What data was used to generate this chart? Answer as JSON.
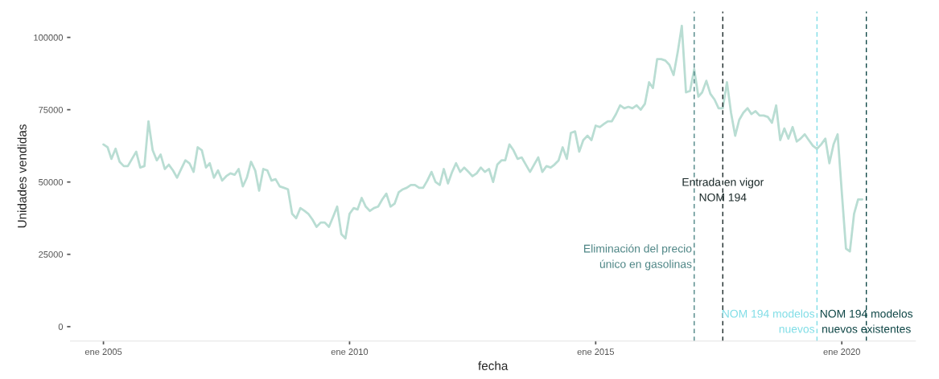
{
  "chart_data": {
    "type": "line",
    "xlabel": "fecha",
    "ylabel": "Unidades vendidas",
    "x": [
      "2005-01",
      "2005-02",
      "2005-03",
      "2005-04",
      "2005-05",
      "2005-06",
      "2005-07",
      "2005-08",
      "2005-09",
      "2005-10",
      "2005-11",
      "2005-12",
      "2006-01",
      "2006-02",
      "2006-03",
      "2006-04",
      "2006-05",
      "2006-06",
      "2006-07",
      "2006-08",
      "2006-09",
      "2006-10",
      "2006-11",
      "2006-12",
      "2007-01",
      "2007-02",
      "2007-03",
      "2007-04",
      "2007-05",
      "2007-06",
      "2007-07",
      "2007-08",
      "2007-09",
      "2007-10",
      "2007-11",
      "2007-12",
      "2008-01",
      "2008-02",
      "2008-03",
      "2008-04",
      "2008-05",
      "2008-06",
      "2008-07",
      "2008-08",
      "2008-09",
      "2008-10",
      "2008-11",
      "2008-12",
      "2009-01",
      "2009-02",
      "2009-03",
      "2009-04",
      "2009-05",
      "2009-06",
      "2009-07",
      "2009-08",
      "2009-09",
      "2009-10",
      "2009-11",
      "2009-12",
      "2010-01",
      "2010-02",
      "2010-03",
      "2010-04",
      "2010-05",
      "2010-06",
      "2010-07",
      "2010-08",
      "2010-09",
      "2010-10",
      "2010-11",
      "2010-12",
      "2011-01",
      "2011-02",
      "2011-03",
      "2011-04",
      "2011-05",
      "2011-06",
      "2011-07",
      "2011-08",
      "2011-09",
      "2011-10",
      "2011-11",
      "2011-12",
      "2012-01",
      "2012-02",
      "2012-03",
      "2012-04",
      "2012-05",
      "2012-06",
      "2012-07",
      "2012-08",
      "2012-09",
      "2012-10",
      "2012-11",
      "2012-12",
      "2013-01",
      "2013-02",
      "2013-03",
      "2013-04",
      "2013-05",
      "2013-06",
      "2013-07",
      "2013-08",
      "2013-09",
      "2013-10",
      "2013-11",
      "2013-12",
      "2014-01",
      "2014-02",
      "2014-03",
      "2014-04",
      "2014-05",
      "2014-06",
      "2014-07",
      "2014-08",
      "2014-09",
      "2014-10",
      "2014-11",
      "2014-12",
      "2015-01",
      "2015-02",
      "2015-03",
      "2015-04",
      "2015-05",
      "2015-06",
      "2015-07",
      "2015-08",
      "2015-09",
      "2015-10",
      "2015-11",
      "2015-12",
      "2016-01",
      "2016-02",
      "2016-03",
      "2016-04",
      "2016-05",
      "2016-06",
      "2016-07",
      "2016-08",
      "2016-09",
      "2016-10",
      "2016-11",
      "2016-12",
      "2017-01",
      "2017-02",
      "2017-03",
      "2017-04",
      "2017-05",
      "2017-06",
      "2017-07",
      "2017-08",
      "2017-09",
      "2017-10",
      "2017-11",
      "2017-12",
      "2018-01",
      "2018-02",
      "2018-03",
      "2018-04",
      "2018-05",
      "2018-06",
      "2018-07",
      "2018-08",
      "2018-09",
      "2018-10",
      "2018-11",
      "2018-12",
      "2019-01",
      "2019-02",
      "2019-03",
      "2019-04",
      "2019-05",
      "2019-06",
      "2019-07",
      "2019-08",
      "2019-09",
      "2019-10",
      "2019-11",
      "2019-12",
      "2020-01",
      "2020-02",
      "2020-03",
      "2020-04",
      "2020-05",
      "2020-06"
    ],
    "series": [
      {
        "color": "#b9ddd3",
        "values": [
          63000,
          62000,
          58000,
          61500,
          57000,
          55500,
          55500,
          58000,
          60500,
          55000,
          55500,
          71000,
          61000,
          57500,
          59500,
          54500,
          56000,
          54000,
          51500,
          54500,
          57500,
          56500,
          53500,
          62000,
          61000,
          55000,
          56500,
          51500,
          54000,
          50500,
          52000,
          53000,
          52500,
          54500,
          48500,
          51500,
          57000,
          54000,
          47000,
          54500,
          54000,
          50500,
          51000,
          48500,
          48000,
          47500,
          39000,
          37500,
          41000,
          40000,
          39000,
          37000,
          34500,
          36000,
          36000,
          34500,
          38000,
          41500,
          32000,
          30500,
          39000,
          41000,
          40500,
          44500,
          41500,
          40000,
          41000,
          41500,
          44000,
          46000,
          41500,
          42500,
          46500,
          47500,
          48000,
          49000,
          49000,
          48000,
          48000,
          50500,
          53500,
          50000,
          49000,
          54500,
          49500,
          53500,
          56500,
          53500,
          55000,
          53500,
          52000,
          53000,
          55000,
          53500,
          54500,
          50000,
          56000,
          57500,
          57500,
          63000,
          61000,
          58000,
          58500,
          56000,
          53500,
          56000,
          58500,
          53500,
          55500,
          55000,
          56000,
          57500,
          62000,
          58000,
          67000,
          67500,
          60500,
          64500,
          66000,
          64500,
          69500,
          69000,
          70000,
          71000,
          71000,
          73500,
          76500,
          75500,
          76000,
          75500,
          76500,
          75000,
          77000,
          84500,
          82500,
          92500,
          92500,
          92000,
          90500,
          87000,
          95000,
          104000,
          81000,
          81500,
          89000,
          79500,
          81000,
          85000,
          80500,
          78500,
          75500,
          75500,
          84500,
          74000,
          66000,
          71500,
          74000,
          75500,
          73500,
          74500,
          73000,
          73000,
          72500,
          70500,
          76500,
          64500,
          68500,
          65000,
          69000,
          64000,
          65000,
          66500,
          64500,
          62500,
          61500,
          63000,
          65000,
          56500,
          63000,
          66500,
          46500,
          27000,
          26000,
          39000,
          44000,
          44000
        ]
      }
    ],
    "xlim": [
      "2004-05",
      "2021-07"
    ],
    "ylim": [
      -5000,
      109000
    ],
    "xticks": [
      {
        "value": "2005-01",
        "label": "ene 2005"
      },
      {
        "value": "2010-01",
        "label": "ene 2010"
      },
      {
        "value": "2015-01",
        "label": "ene 2015"
      },
      {
        "value": "2020-01",
        "label": "ene 2020"
      }
    ],
    "yticks": [
      0,
      25000,
      50000,
      75000,
      100000
    ],
    "grid": false,
    "ref_lines": [
      {
        "axis": "x",
        "value": "2017-01",
        "label": "Eliminación del precio\núnico en gasolinas",
        "color": "#4d8585",
        "line_style": "dashed"
      },
      {
        "axis": "x",
        "value": "2017-08",
        "label": "Entrada en vigor\nNOM 194",
        "color": "#1c2a2a",
        "line_style": "dashed"
      },
      {
        "axis": "x",
        "value": "2019-07",
        "label": "NOM 194 modelos\nnuevos",
        "color": "#7fdde6",
        "line_style": "dashed"
      },
      {
        "axis": "x",
        "value": "2020-07",
        "label": "NOM 194 modelos\nnuevos existentes",
        "color": "#0d4545",
        "line_style": "dashed"
      }
    ]
  }
}
